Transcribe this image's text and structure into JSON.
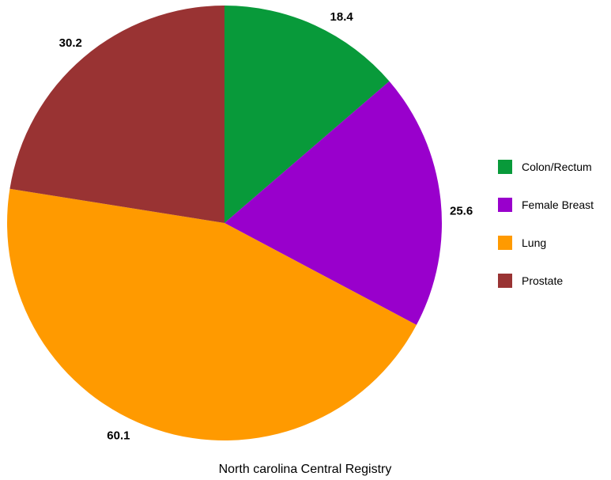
{
  "chart_data": {
    "type": "pie",
    "title": "",
    "caption": "North carolina Central Registry",
    "categories": [
      "Colon/Rectum",
      "Female Breast",
      "Lung",
      "Prostate"
    ],
    "values": [
      18.4,
      25.6,
      60.1,
      30.2
    ],
    "colors": [
      "#089a3a",
      "#9900cc",
      "#ff9a00",
      "#993333"
    ],
    "legend_position": "right",
    "start_angle": "top, clockwise"
  }
}
